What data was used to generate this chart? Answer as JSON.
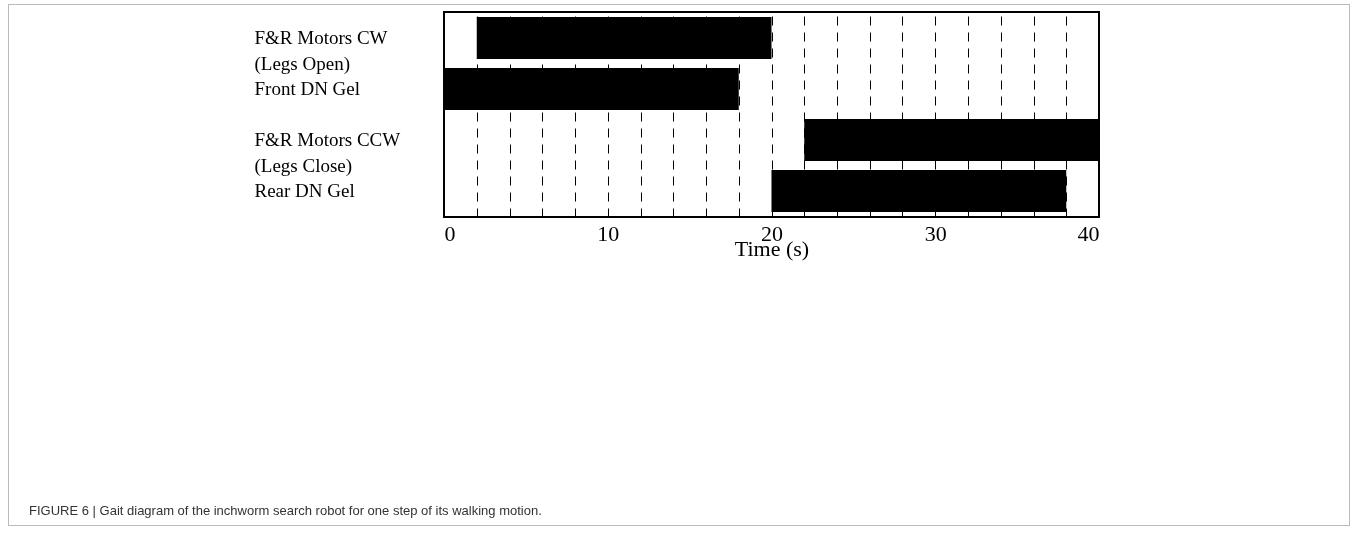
{
  "chart_data": {
    "type": "bar",
    "orientation": "horizontal",
    "categories": [
      "F&R Motors CW\n(Legs Open)",
      "Front DN Gel",
      "F&R Motors CCW\n(Legs Close)",
      "Rear DN Gel"
    ],
    "base": [
      2,
      0,
      22,
      20
    ],
    "values": [
      18,
      18,
      18,
      18
    ],
    "color": "#000000",
    "xlabel": "Time (s)",
    "xlim": [
      0,
      40
    ],
    "xticks": [
      0,
      {
        "value": 2,
        "label": null
      },
      {
        "value": 4,
        "label": null
      },
      {
        "value": 6,
        "label": null
      },
      {
        "value": 8,
        "label": null
      },
      10,
      {
        "value": 12,
        "label": null
      },
      {
        "value": 14,
        "label": null
      },
      {
        "value": 16,
        "label": null
      },
      {
        "value": 18,
        "label": null
      },
      20,
      {
        "value": 22,
        "label": null
      },
      {
        "value": 24,
        "label": null
      },
      {
        "value": 26,
        "label": null
      },
      {
        "value": 28,
        "label": null
      },
      30,
      {
        "value": 32,
        "label": null
      },
      {
        "value": 34,
        "label": null
      },
      {
        "value": 36,
        "label": null
      },
      {
        "value": 38,
        "label": null
      },
      40
    ],
    "grid": "x",
    "annotations": [
      "FIGURE 6 | Gait diagram of the inchworm search robot for one step of its walking motion."
    ]
  }
}
